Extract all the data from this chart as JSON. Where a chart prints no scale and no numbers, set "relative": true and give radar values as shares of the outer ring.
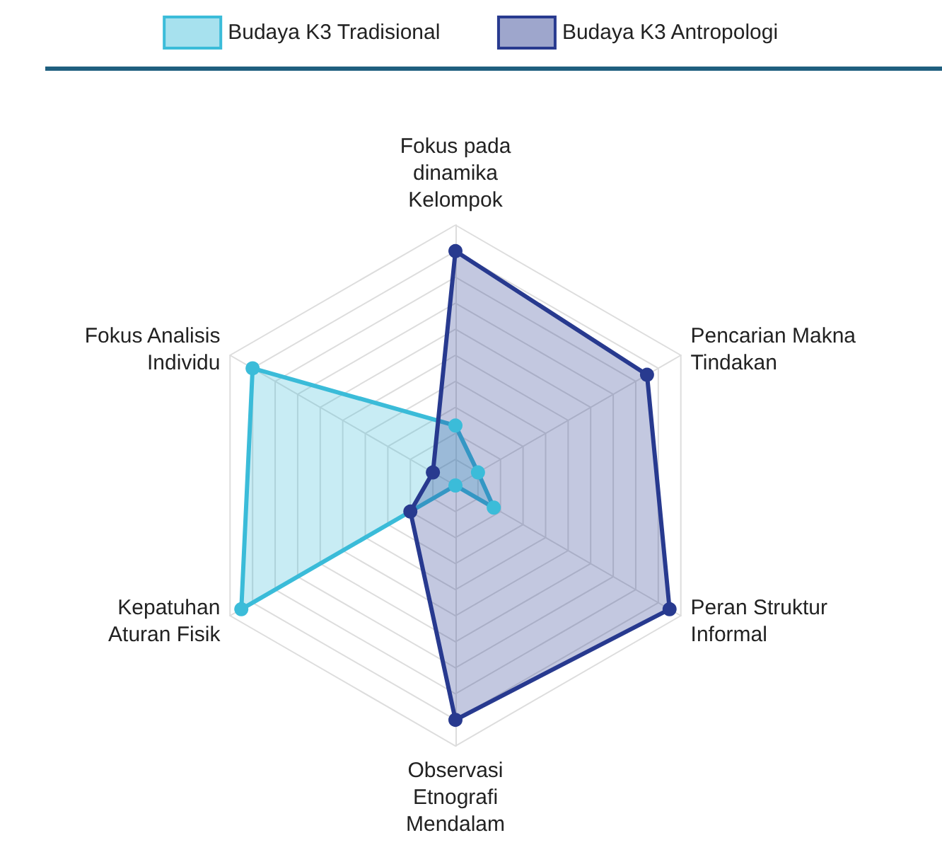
{
  "chart_data": {
    "type": "radar",
    "relative": true,
    "legend": "top",
    "marker": "circle",
    "categories": [
      "Fokus pada dinamika Kelompok",
      "Pencarian Makna Tindakan",
      "Peran Struktur Informal",
      "Observasi Etnografi Mendalam",
      "Kepatuhan Aturan Fisik",
      "Fokus Analisis Individu"
    ],
    "series": [
      {
        "name": "Budaya K3 Tradisional",
        "color": "#3bbcd9",
        "values": [
          0.23,
          0.1,
          0.17,
          0,
          0.95,
          0.9
        ]
      },
      {
        "name": "Budaya K3 Antropologi",
        "color": "#283a8f",
        "values": [
          0.9,
          0.85,
          0.95,
          0.9,
          0.2,
          0.1
        ]
      }
    ]
  }
}
